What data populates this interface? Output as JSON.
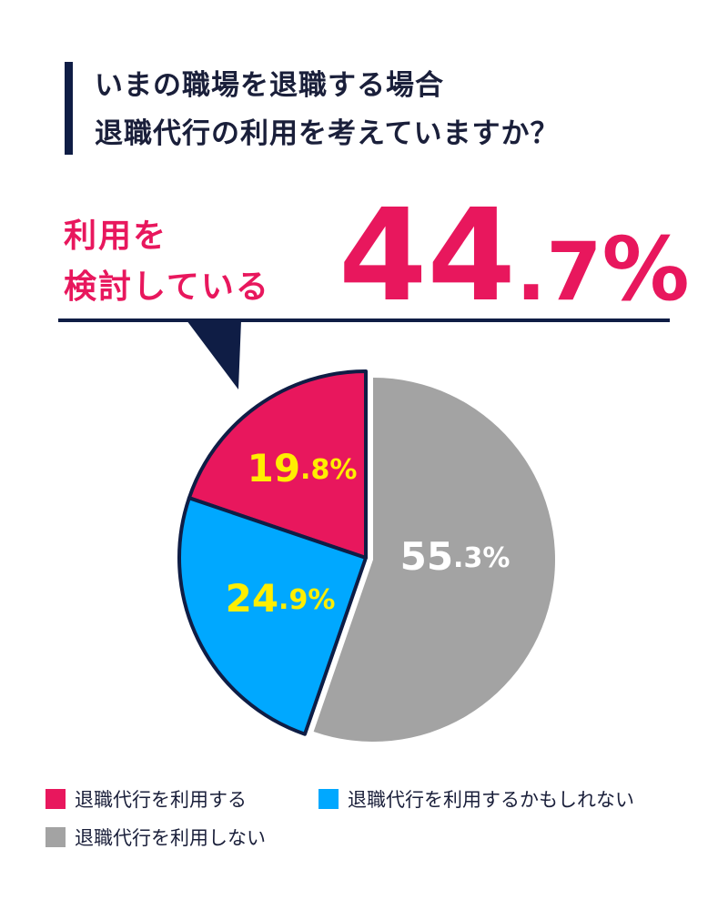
{
  "title": {
    "line1": "いまの職場を退職する場合",
    "line2": "退職代行の利用を考えていますか？"
  },
  "callout": {
    "label_line1": "利用を",
    "label_line2": "検討している",
    "value_int": "44",
    "value_dec": ".7",
    "value_pct": "%"
  },
  "colors": {
    "use": "#e8175d",
    "maybe": "#00a8ff",
    "no": "#a3a3a3",
    "navy": "#0f1d45",
    "label_yellow": "#ffee00",
    "label_white": "#ffffff"
  },
  "chart_data": {
    "type": "pie",
    "slices": [
      {
        "label": "退職代行を利用する",
        "value": 19.8,
        "display_int": "19",
        "display_dec": ".8",
        "display_pct": "%",
        "color": "#e8175d",
        "label_color": "#ffee00"
      },
      {
        "label": "退職代行を利用するかもしれない",
        "value": 24.9,
        "display_int": "24",
        "display_dec": ".9",
        "display_pct": "%",
        "color": "#00a8ff",
        "label_color": "#ffee00"
      },
      {
        "label": "退職代行を利用しない",
        "value": 55.3,
        "display_int": "55",
        "display_dec": ".3",
        "display_pct": "%",
        "color": "#a3a3a3",
        "label_color": "#ffffff"
      }
    ],
    "legend": "bottom"
  }
}
